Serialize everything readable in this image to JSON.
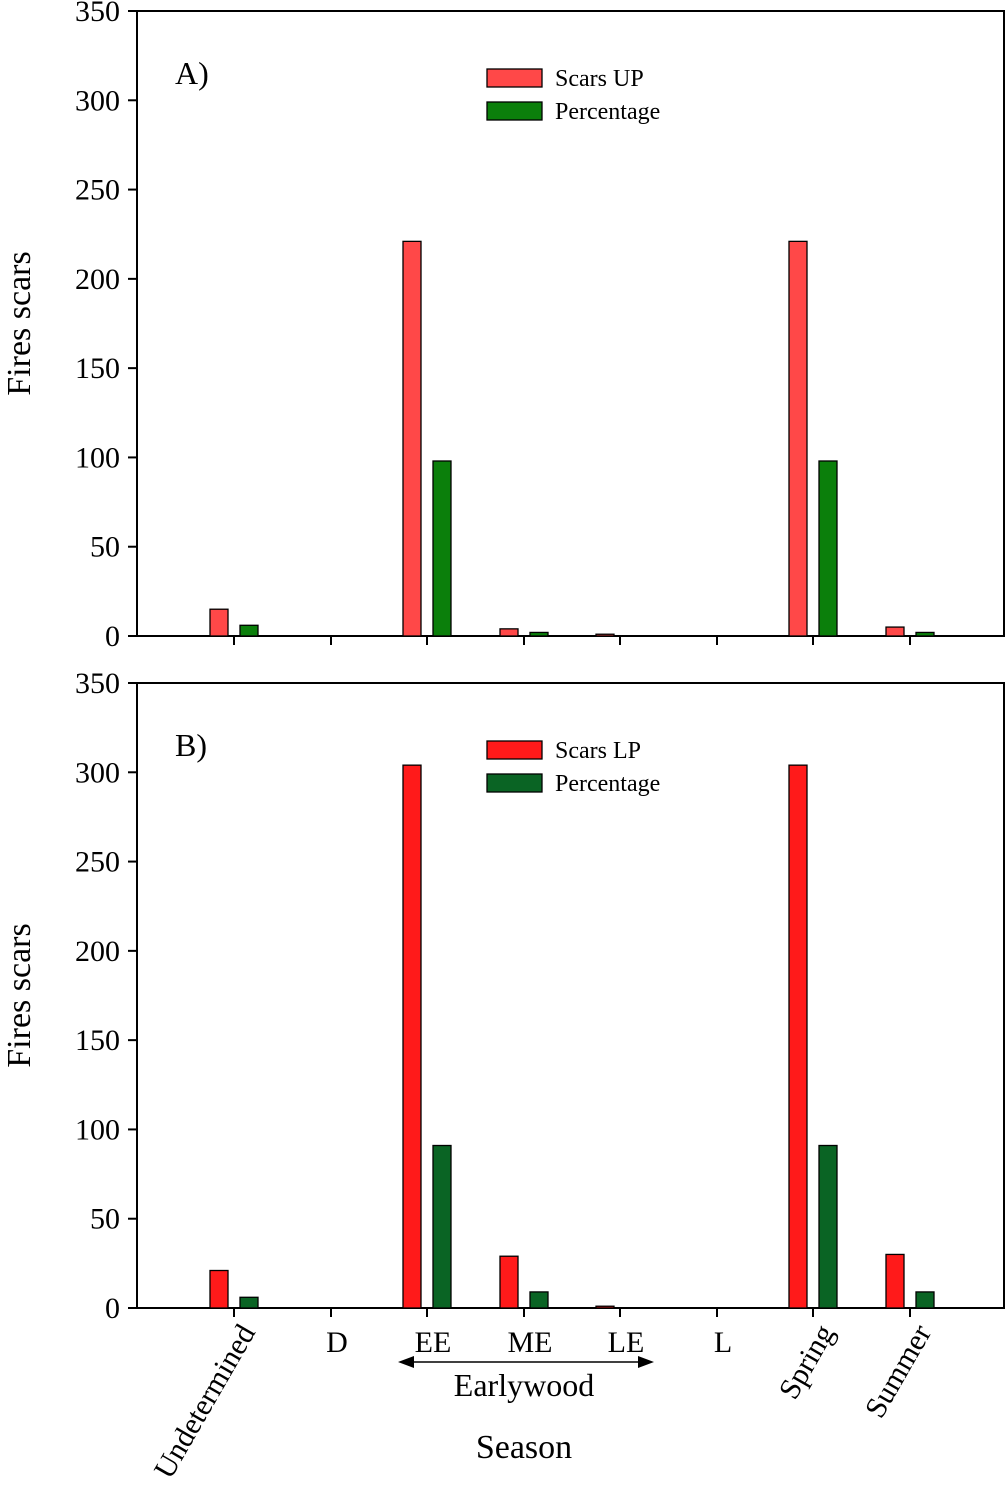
{
  "chart_data": [
    {
      "type": "bar",
      "panel_label": "A)",
      "ylabel": "Fires scars",
      "ylim": [
        0,
        350
      ],
      "yticks": [
        0,
        50,
        100,
        150,
        200,
        250,
        300,
        350
      ],
      "legend_position": "top-center",
      "categories": [
        "Undetermined",
        "D",
        "EE",
        "ME",
        "LE",
        "L",
        "Spring",
        "Summer"
      ],
      "series": [
        {
          "name": "Scars UP",
          "color": "#ff4848",
          "values": [
            15,
            0,
            221,
            4,
            1,
            0,
            221,
            5
          ]
        },
        {
          "name": "Percentage",
          "color": "#0b7f0b",
          "values": [
            6,
            0,
            98,
            2,
            0,
            0,
            98,
            2
          ]
        }
      ]
    },
    {
      "type": "bar",
      "panel_label": "B)",
      "ylabel": "Fires scars",
      "xlabel": "Season",
      "ylim": [
        0,
        350
      ],
      "yticks": [
        0,
        50,
        100,
        150,
        200,
        250,
        300,
        350
      ],
      "legend_position": "top-center",
      "categories": [
        "Undetermined",
        "D",
        "EE",
        "ME",
        "LE",
        "L",
        "Spring",
        "Summer"
      ],
      "series": [
        {
          "name": "Scars LP",
          "color": "#ff1a1a",
          "values": [
            21,
            0,
            304,
            29,
            1,
            0,
            304,
            30
          ]
        },
        {
          "name": "Percentage",
          "color": "#0a6424",
          "values": [
            6,
            0,
            91,
            9,
            0,
            0,
            91,
            9
          ]
        }
      ],
      "group_annotation": "Earlywood"
    }
  ]
}
